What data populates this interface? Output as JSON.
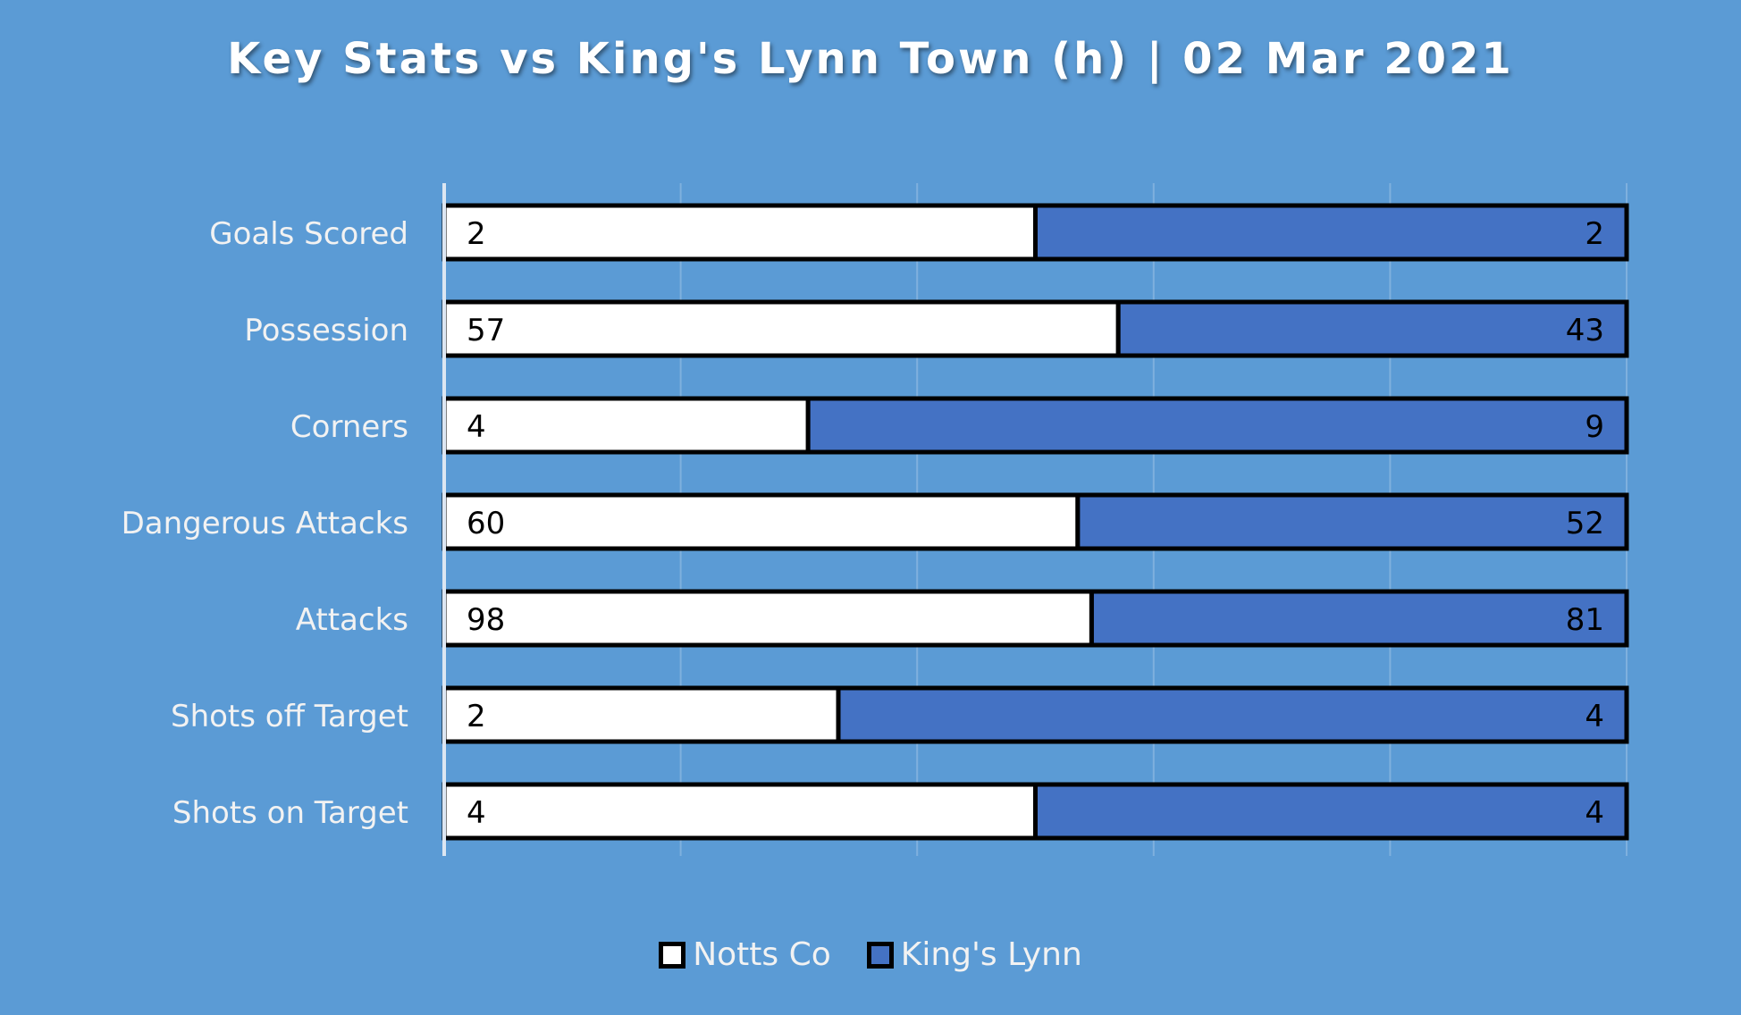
{
  "chart_data": {
    "type": "bar",
    "stacking": "percent-stacked horizontal",
    "title": "Key Stats vs King's Lynn Town (h) | 02 Mar 2021",
    "categories": [
      "Goals Scored",
      "Possession",
      "Corners",
      "Dangerous Attacks",
      "Attacks",
      "Shots off Target",
      "Shots on Target"
    ],
    "series": [
      {
        "name": "Notts Co",
        "values": [
          2,
          57,
          4,
          60,
          98,
          2,
          4
        ],
        "color": "#ffffff"
      },
      {
        "name": "King's Lynn",
        "values": [
          2,
          43,
          9,
          52,
          81,
          4,
          4
        ],
        "color": "#4472c4"
      }
    ],
    "xlim": [
      0,
      1
    ],
    "grid": true,
    "legend": "bottom"
  },
  "colors": {
    "background": "#5b9bd5",
    "bar_outline": "#000000",
    "axis_line": "#dce6f2",
    "gridline": "#7fb0de",
    "category_text": "#f2f2f2",
    "value_text": "#000000"
  }
}
